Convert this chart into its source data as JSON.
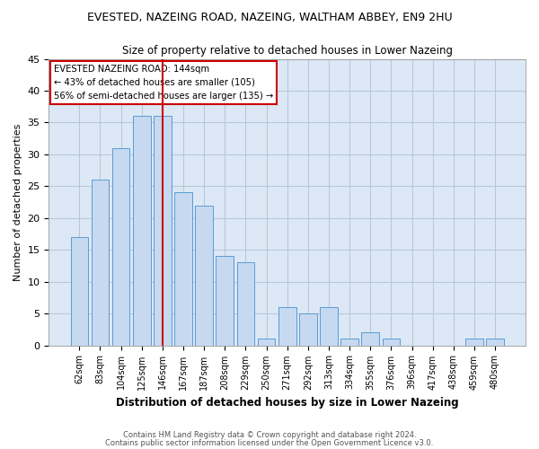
{
  "title": "EVESTED, NAZEING ROAD, NAZEING, WALTHAM ABBEY, EN9 2HU",
  "subtitle": "Size of property relative to detached houses in Lower Nazeing",
  "xlabel": "Distribution of detached houses by size in Lower Nazeing",
  "ylabel": "Number of detached properties",
  "categories": [
    "62sqm",
    "83sqm",
    "104sqm",
    "125sqm",
    "146sqm",
    "167sqm",
    "187sqm",
    "208sqm",
    "229sqm",
    "250sqm",
    "271sqm",
    "292sqm",
    "313sqm",
    "334sqm",
    "355sqm",
    "376sqm",
    "396sqm",
    "417sqm",
    "438sqm",
    "459sqm",
    "480sqm"
  ],
  "values": [
    17,
    26,
    31,
    36,
    36,
    24,
    22,
    14,
    13,
    1,
    6,
    5,
    6,
    1,
    2,
    1,
    0,
    0,
    0,
    1,
    1
  ],
  "bar_color": "#c6d9f0",
  "bar_edge_color": "#5b9bd5",
  "vline_x_index": 4,
  "vline_color": "#cc0000",
  "annotation_title": "EVESTED NAZEING ROAD: 144sqm",
  "annotation_line1": "← 43% of detached houses are smaller (105)",
  "annotation_line2": "56% of semi-detached houses are larger (135) →",
  "annotation_box_color": "#cc0000",
  "ylim": [
    0,
    45
  ],
  "yticks": [
    0,
    5,
    10,
    15,
    20,
    25,
    30,
    35,
    40,
    45
  ],
  "footer1": "Contains HM Land Registry data © Crown copyright and database right 2024.",
  "footer2": "Contains public sector information licensed under the Open Government Licence v3.0.",
  "bg_color": "#ffffff",
  "grid_color": "#b8c8d8",
  "plot_bg_color": "#dce8f5"
}
